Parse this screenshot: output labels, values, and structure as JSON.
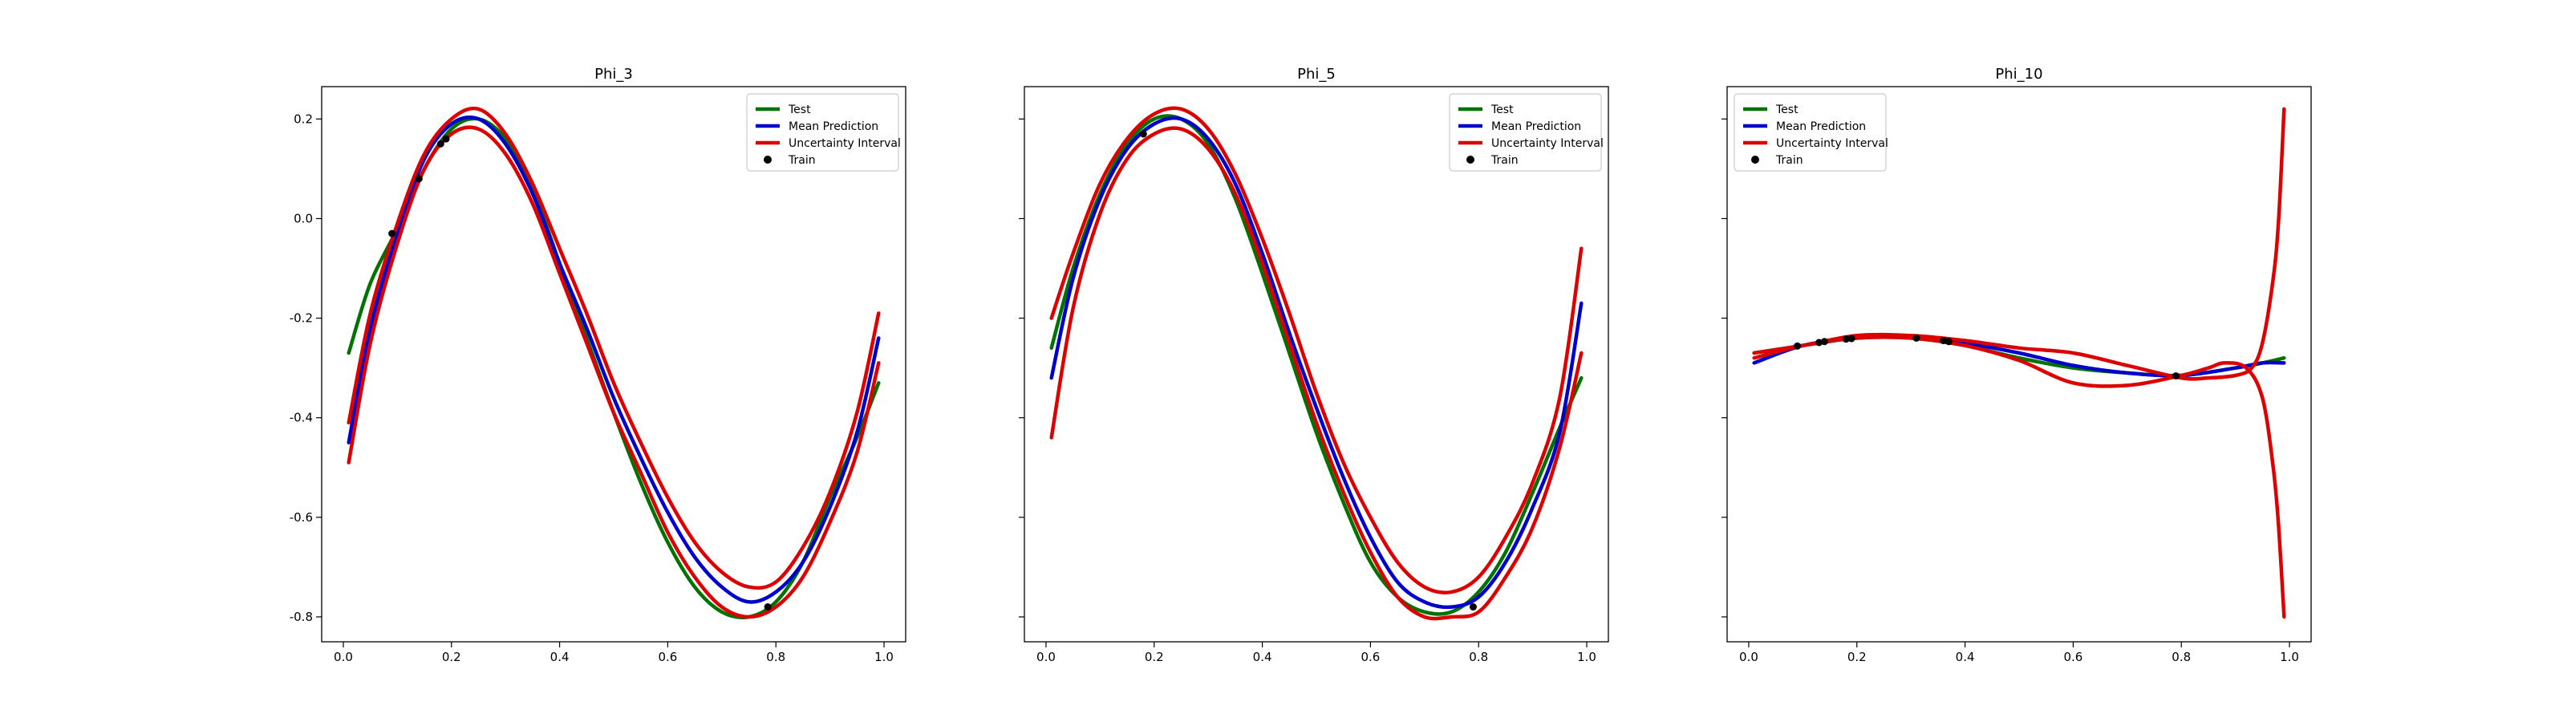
{
  "chart_data": [
    {
      "type": "line",
      "title": "Phi_3",
      "xlim": [
        -0.04,
        1.04
      ],
      "ylim": [
        -0.85,
        0.265
      ],
      "xticks": [
        "0.0",
        "0.2",
        "0.4",
        "0.6",
        "0.8",
        "1.0"
      ],
      "yticks": [
        "-0.8",
        "-0.6",
        "-0.4",
        "-0.2",
        "0.0",
        "0.2"
      ],
      "show_ytick_labels": true,
      "legend": {
        "position": "top-right",
        "entries": [
          "Test",
          "Mean Prediction",
          "Uncertainty Interval",
          "Train"
        ]
      },
      "series": [
        {
          "name": "Test",
          "color": "#007200",
          "x": [
            0.01,
            0.05,
            0.1,
            0.15,
            0.2,
            0.25,
            0.3,
            0.35,
            0.4,
            0.45,
            0.5,
            0.55,
            0.6,
            0.65,
            0.7,
            0.75,
            0.8,
            0.85,
            0.9,
            0.95,
            0.99
          ],
          "y": [
            -0.27,
            -0.13,
            -0.02,
            0.1,
            0.18,
            0.2,
            0.16,
            0.06,
            -0.09,
            -0.24,
            -0.39,
            -0.53,
            -0.65,
            -0.74,
            -0.79,
            -0.8,
            -0.77,
            -0.69,
            -0.56,
            -0.44,
            -0.33
          ]
        },
        {
          "name": "Mean Prediction",
          "color": "#0000cc",
          "x": [
            0.01,
            0.05,
            0.1,
            0.15,
            0.2,
            0.25,
            0.3,
            0.35,
            0.4,
            0.45,
            0.5,
            0.55,
            0.6,
            0.65,
            0.7,
            0.75,
            0.8,
            0.85,
            0.9,
            0.95,
            0.99
          ],
          "y": [
            -0.45,
            -0.22,
            -0.03,
            0.12,
            0.19,
            0.2,
            0.15,
            0.05,
            -0.09,
            -0.22,
            -0.36,
            -0.48,
            -0.59,
            -0.68,
            -0.74,
            -0.77,
            -0.75,
            -0.69,
            -0.58,
            -0.43,
            -0.24
          ]
        },
        {
          "name": "Uncertainty Interval",
          "color": "#dd0000",
          "x": [
            0.01,
            0.05,
            0.1,
            0.15,
            0.2,
            0.25,
            0.3,
            0.35,
            0.4,
            0.45,
            0.5,
            0.55,
            0.6,
            0.65,
            0.7,
            0.75,
            0.8,
            0.85,
            0.9,
            0.95,
            0.99
          ],
          "y": [
            -0.41,
            -0.19,
            -0.01,
            0.13,
            0.2,
            0.22,
            0.17,
            0.07,
            -0.06,
            -0.19,
            -0.33,
            -0.45,
            -0.56,
            -0.65,
            -0.71,
            -0.74,
            -0.73,
            -0.66,
            -0.55,
            -0.39,
            -0.19
          ]
        },
        {
          "name": "",
          "color": "#dd0000",
          "x": [
            0.01,
            0.05,
            0.1,
            0.15,
            0.2,
            0.25,
            0.3,
            0.35,
            0.4,
            0.45,
            0.5,
            0.55,
            0.6,
            0.65,
            0.7,
            0.75,
            0.8,
            0.85,
            0.9,
            0.95,
            0.99
          ],
          "y": [
            -0.49,
            -0.25,
            -0.05,
            0.1,
            0.17,
            0.18,
            0.13,
            0.03,
            -0.11,
            -0.25,
            -0.39,
            -0.51,
            -0.63,
            -0.72,
            -0.78,
            -0.8,
            -0.78,
            -0.72,
            -0.61,
            -0.47,
            -0.29
          ]
        },
        {
          "name": "Train",
          "color": "#000000",
          "kind": "scatter",
          "x": [
            0.09,
            0.14,
            0.18,
            0.19,
            0.785
          ],
          "y": [
            -0.03,
            0.08,
            0.15,
            0.16,
            -0.78
          ]
        }
      ]
    },
    {
      "type": "line",
      "title": "Phi_5",
      "xlim": [
        -0.04,
        1.04
      ],
      "ylim": [
        -0.85,
        0.265
      ],
      "xticks": [
        "0.0",
        "0.2",
        "0.4",
        "0.6",
        "0.8",
        "1.0"
      ],
      "yticks": [
        "",
        "",
        "",
        "",
        "",
        ""
      ],
      "show_ytick_labels": false,
      "legend": {
        "position": "top-right",
        "entries": [
          "Test",
          "Mean Prediction",
          "Uncertainty Interval",
          "Train"
        ]
      },
      "series": [
        {
          "name": "Test",
          "color": "#007200",
          "x": [
            0.01,
            0.05,
            0.1,
            0.15,
            0.2,
            0.25,
            0.3,
            0.35,
            0.4,
            0.45,
            0.5,
            0.55,
            0.6,
            0.65,
            0.7,
            0.75,
            0.8,
            0.85,
            0.9,
            0.95,
            0.99
          ],
          "y": [
            -0.26,
            -0.1,
            0.05,
            0.15,
            0.2,
            0.2,
            0.15,
            0.04,
            -0.11,
            -0.27,
            -0.43,
            -0.57,
            -0.69,
            -0.76,
            -0.79,
            -0.79,
            -0.75,
            -0.67,
            -0.55,
            -0.42,
            -0.32
          ]
        },
        {
          "name": "Mean Prediction",
          "color": "#0000cc",
          "x": [
            0.01,
            0.05,
            0.1,
            0.15,
            0.2,
            0.25,
            0.3,
            0.35,
            0.4,
            0.45,
            0.5,
            0.55,
            0.6,
            0.65,
            0.7,
            0.75,
            0.8,
            0.85,
            0.9,
            0.95,
            0.99
          ],
          "y": [
            -0.32,
            -0.12,
            0.04,
            0.14,
            0.19,
            0.2,
            0.16,
            0.07,
            -0.07,
            -0.23,
            -0.38,
            -0.52,
            -0.64,
            -0.73,
            -0.77,
            -0.78,
            -0.76,
            -0.69,
            -0.58,
            -0.43,
            -0.17
          ]
        },
        {
          "name": "Uncertainty Interval",
          "color": "#dd0000",
          "x": [
            0.01,
            0.05,
            0.1,
            0.15,
            0.2,
            0.25,
            0.3,
            0.35,
            0.4,
            0.45,
            0.5,
            0.55,
            0.6,
            0.65,
            0.7,
            0.75,
            0.8,
            0.85,
            0.9,
            0.95,
            0.99
          ],
          "y": [
            -0.2,
            -0.07,
            0.07,
            0.16,
            0.21,
            0.22,
            0.18,
            0.09,
            -0.04,
            -0.19,
            -0.35,
            -0.49,
            -0.6,
            -0.69,
            -0.74,
            -0.75,
            -0.72,
            -0.64,
            -0.53,
            -0.36,
            -0.06
          ]
        },
        {
          "name": "",
          "color": "#dd0000",
          "x": [
            0.01,
            0.05,
            0.1,
            0.15,
            0.2,
            0.25,
            0.3,
            0.35,
            0.4,
            0.45,
            0.5,
            0.55,
            0.6,
            0.65,
            0.7,
            0.75,
            0.8,
            0.85,
            0.9,
            0.95,
            0.99
          ],
          "y": [
            -0.44,
            -0.18,
            0.01,
            0.12,
            0.17,
            0.18,
            0.14,
            0.05,
            -0.09,
            -0.25,
            -0.41,
            -0.55,
            -0.67,
            -0.76,
            -0.8,
            -0.8,
            -0.79,
            -0.72,
            -0.62,
            -0.46,
            -0.27
          ]
        },
        {
          "name": "Train",
          "color": "#000000",
          "kind": "scatter",
          "x": [
            0.18,
            0.79
          ],
          "y": [
            0.17,
            -0.78
          ]
        }
      ]
    },
    {
      "type": "line",
      "title": "Phi_10",
      "xlim": [
        -0.04,
        1.04
      ],
      "ylim": [
        -0.85,
        0.265
      ],
      "xticks": [
        "0.0",
        "0.2",
        "0.4",
        "0.6",
        "0.8",
        "1.0"
      ],
      "yticks": [
        "",
        "",
        "",
        "",
        "",
        ""
      ],
      "show_ytick_labels": false,
      "legend": {
        "position": "top-left",
        "entries": [
          "Test",
          "Mean Prediction",
          "Uncertainty Interval",
          "Train"
        ]
      },
      "series": [
        {
          "name": "Test",
          "color": "#007200",
          "x": [
            0.01,
            0.1,
            0.2,
            0.3,
            0.4,
            0.5,
            0.6,
            0.7,
            0.8,
            0.9,
            0.95,
            0.99
          ],
          "y": [
            -0.27,
            -0.255,
            -0.24,
            -0.24,
            -0.255,
            -0.28,
            -0.3,
            -0.31,
            -0.315,
            -0.3,
            -0.29,
            -0.28
          ]
        },
        {
          "name": "Mean Prediction",
          "color": "#0000cc",
          "x": [
            0.01,
            0.1,
            0.2,
            0.3,
            0.4,
            0.5,
            0.6,
            0.7,
            0.8,
            0.9,
            0.95,
            0.99
          ],
          "y": [
            -0.29,
            -0.255,
            -0.24,
            -0.238,
            -0.25,
            -0.27,
            -0.295,
            -0.31,
            -0.315,
            -0.3,
            -0.29,
            -0.29
          ]
        },
        {
          "name": "Uncertainty Interval",
          "color": "#dd0000",
          "x": [
            0.01,
            0.1,
            0.2,
            0.3,
            0.4,
            0.5,
            0.6,
            0.7,
            0.8,
            0.85,
            0.9,
            0.93,
            0.95,
            0.97,
            0.98,
            0.99
          ],
          "y": [
            -0.27,
            -0.255,
            -0.235,
            -0.235,
            -0.245,
            -0.26,
            -0.27,
            -0.295,
            -0.32,
            -0.32,
            -0.315,
            -0.3,
            -0.25,
            -0.12,
            0.0,
            0.22
          ]
        },
        {
          "name": "",
          "color": "#dd0000",
          "x": [
            0.01,
            0.1,
            0.2,
            0.3,
            0.4,
            0.5,
            0.6,
            0.7,
            0.8,
            0.85,
            0.88,
            0.92,
            0.95,
            0.97,
            0.98,
            0.99
          ],
          "y": [
            -0.28,
            -0.255,
            -0.24,
            -0.24,
            -0.255,
            -0.285,
            -0.33,
            -0.335,
            -0.315,
            -0.3,
            -0.29,
            -0.3,
            -0.36,
            -0.5,
            -0.62,
            -0.8
          ]
        },
        {
          "name": "Train",
          "color": "#000000",
          "kind": "scatter",
          "x": [
            0.09,
            0.13,
            0.14,
            0.18,
            0.19,
            0.31,
            0.36,
            0.37,
            0.79
          ],
          "y": [
            -0.256,
            -0.249,
            -0.247,
            -0.242,
            -0.241,
            -0.24,
            -0.245,
            -0.247,
            -0.316
          ]
        }
      ]
    }
  ]
}
